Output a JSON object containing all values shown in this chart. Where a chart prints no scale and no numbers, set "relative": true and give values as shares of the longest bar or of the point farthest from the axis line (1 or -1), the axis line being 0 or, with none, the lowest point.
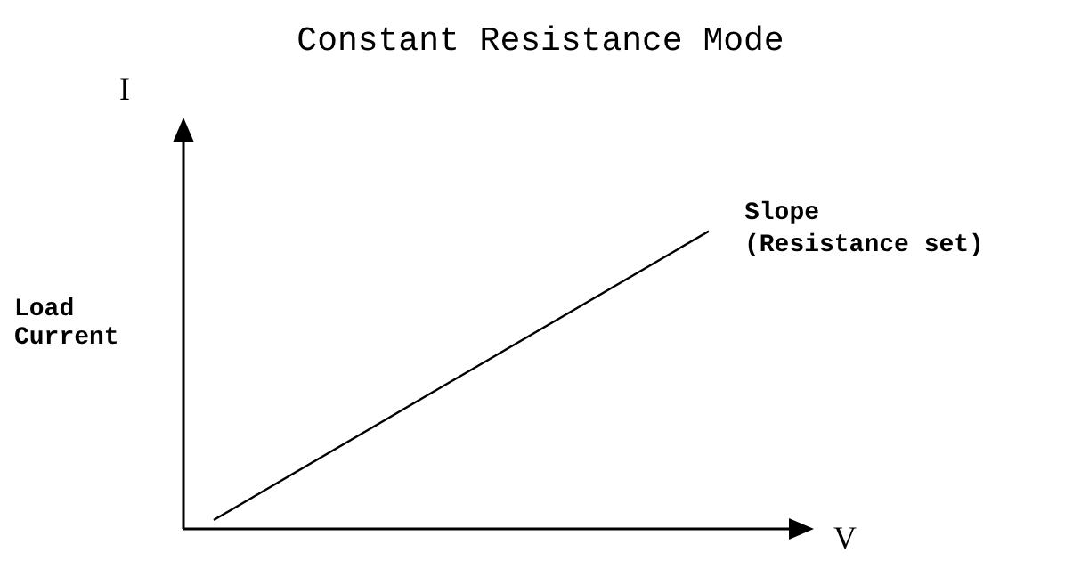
{
  "chart_data": {
    "type": "line",
    "title": "Constant Resistance Mode",
    "xlabel": "V",
    "ylabel": "Load Current",
    "annotations": [
      "I",
      "Slope\n(Resistance set)"
    ],
    "relative": true,
    "categories": [
      null,
      null
    ],
    "series": [
      {
        "color": "#000000",
        "values": [
          0.03,
          1
        ]
      }
    ],
    "marker": "none",
    "grid": false
  }
}
